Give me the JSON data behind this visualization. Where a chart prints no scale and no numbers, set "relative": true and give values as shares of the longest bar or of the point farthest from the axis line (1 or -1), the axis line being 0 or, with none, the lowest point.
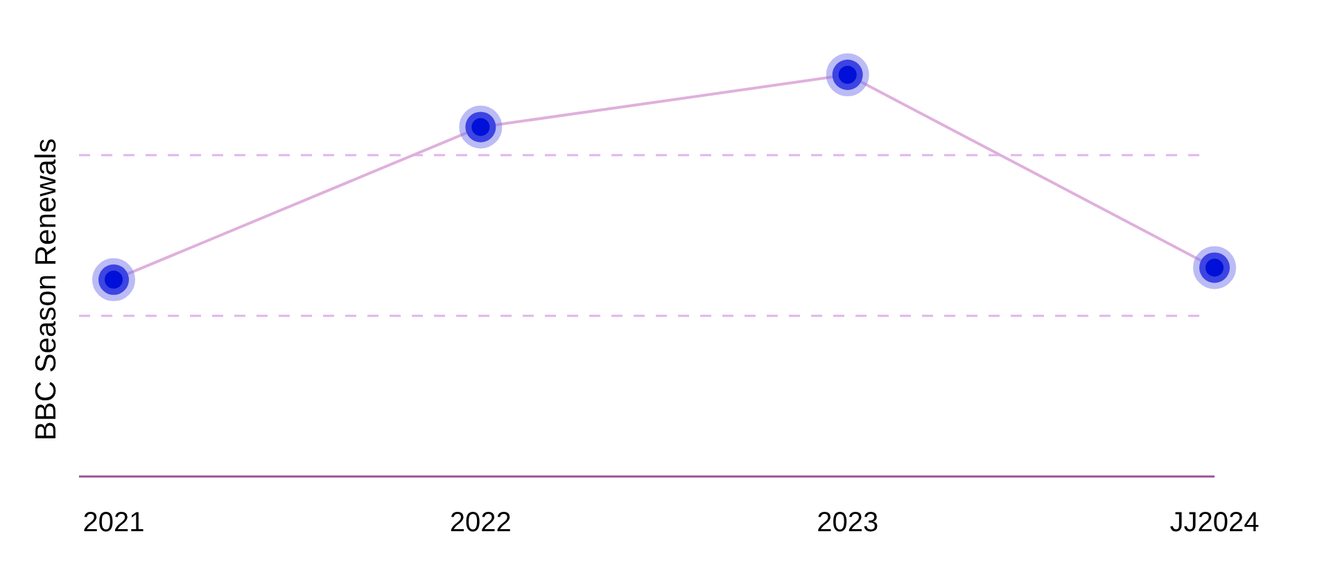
{
  "chart_data": {
    "type": "line",
    "ylabel": "BBC Season Renewals",
    "categories": [
      "2021",
      "2022",
      "2023",
      "JJ2024"
    ],
    "relative": true,
    "series": [
      {
        "color": "#0010d8",
        "values": [
          0.49,
          0.87,
          1,
          0.52
        ]
      }
    ],
    "marker": "circle",
    "line_style": "solid",
    "legend": false,
    "ref_lines": [
      {
        "axis": "y",
        "value": 0.8,
        "color": "#e2b4ee",
        "line_style": "dashed"
      },
      {
        "axis": "y",
        "value": 0.4,
        "color": "#e2b4ee",
        "line_style": "dashed"
      }
    ]
  }
}
